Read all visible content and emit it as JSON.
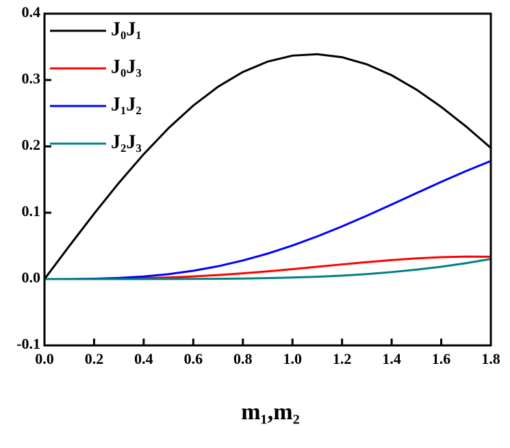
{
  "chart_data": {
    "type": "line",
    "x_label": "m₁,m₂",
    "x": [
      0,
      0.1,
      0.2,
      0.3,
      0.4,
      0.5,
      0.6,
      0.7,
      0.8,
      0.9,
      1.0,
      1.1,
      1.2,
      1.3,
      1.4,
      1.5,
      1.6,
      1.7,
      1.8
    ],
    "series": [
      {
        "name": "J₀J₁",
        "color": "#000000",
        "values": [
          0,
          0.0498,
          0.0985,
          0.145,
          0.1882,
          0.2274,
          0.2615,
          0.2899,
          0.3121,
          0.3278,
          0.3368,
          0.3389,
          0.3344,
          0.3237,
          0.3072,
          0.2855,
          0.2595,
          0.23,
          0.1977
        ]
      },
      {
        "name": "J₀J₃",
        "color": "#ff0000",
        "values": [
          0,
          0,
          0.0002,
          0.0005,
          0.0013,
          0.0024,
          0.004,
          0.0061,
          0.0086,
          0.0116,
          0.015,
          0.0185,
          0.0221,
          0.0255,
          0.0286,
          0.0312,
          0.033,
          0.0339,
          0.0336
        ]
      },
      {
        "name": "J₁J₂",
        "color": "#0000ff",
        "values": [
          0,
          0.0001,
          0.0005,
          0.0017,
          0.0039,
          0.0074,
          0.0125,
          0.0193,
          0.028,
          0.0384,
          0.0506,
          0.0643,
          0.0794,
          0.0955,
          0.1124,
          0.1295,
          0.1465,
          0.1628,
          0.178
        ]
      },
      {
        "name": "J₂J₃",
        "color": "#008080",
        "values": [
          0,
          0,
          0,
          0,
          0,
          0.0001,
          0.0002,
          0.0004,
          0.0008,
          0.0014,
          0.0023,
          0.0035,
          0.0052,
          0.0075,
          0.0105,
          0.0142,
          0.0186,
          0.024,
          0.0302
        ]
      }
    ],
    "xlim": [
      0,
      1.8
    ],
    "xticks": [
      {
        "value": 0,
        "label": "0.0"
      },
      0.2,
      0.4,
      0.6,
      0.8,
      {
        "value": 1,
        "label": "1.0"
      },
      1.2,
      1.4,
      1.6,
      1.8
    ],
    "ylim": [
      -0.1,
      0.4
    ],
    "yticks": [
      -0.1,
      {
        "value": 0,
        "label": "0.0"
      },
      0.1,
      0.2,
      0.3,
      0.4
    ],
    "legend": "upper-left",
    "grid": false
  }
}
